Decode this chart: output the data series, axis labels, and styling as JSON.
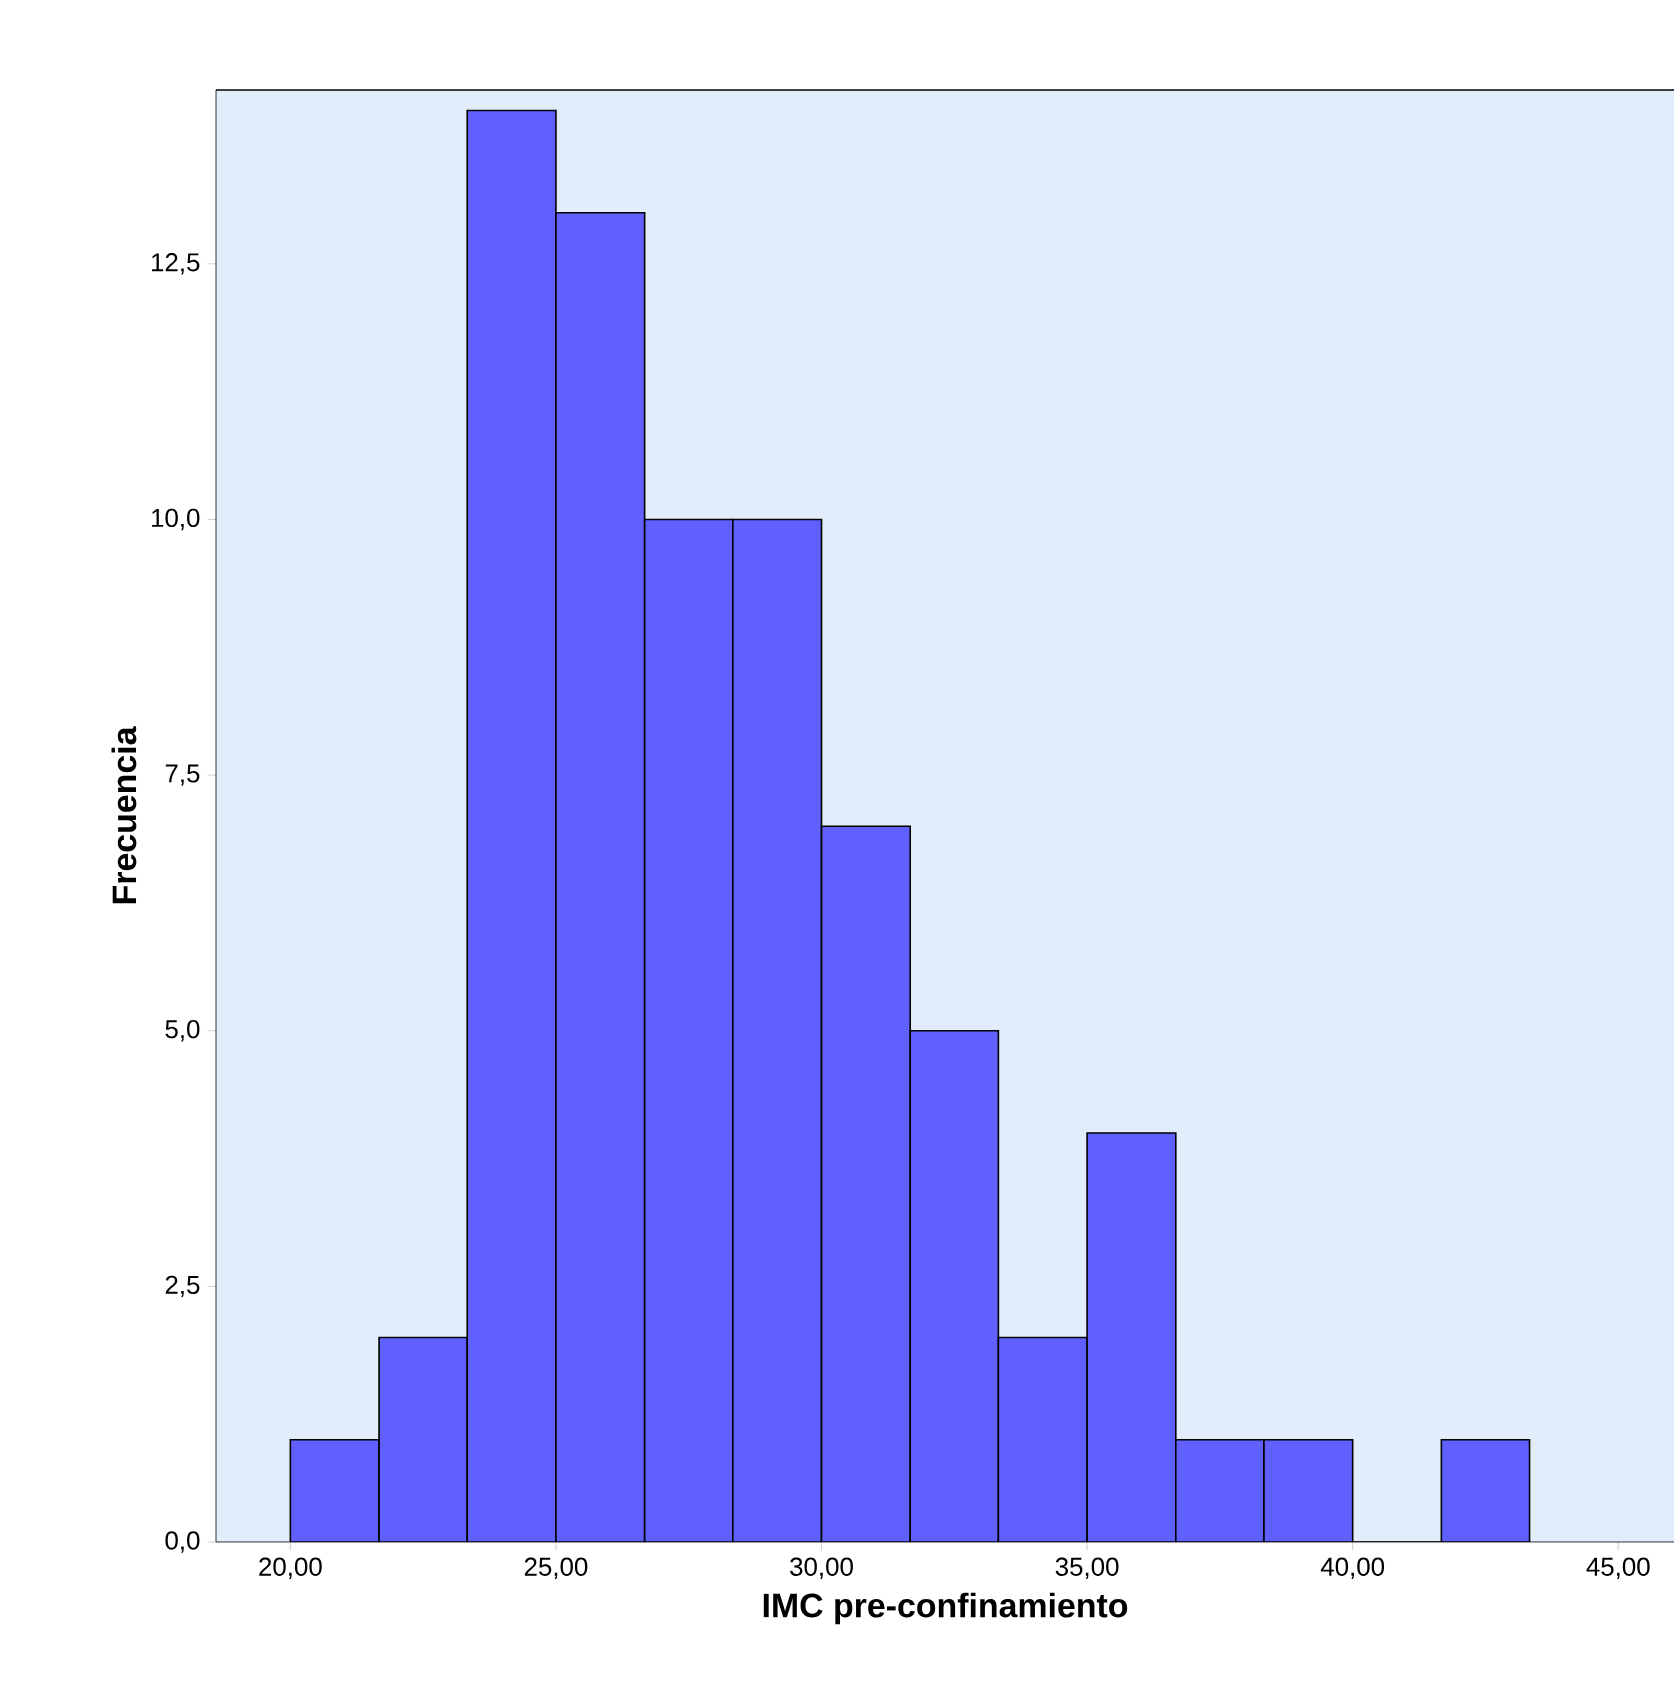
{
  "chart_data": {
    "type": "histogram",
    "xlabel": "IMC pre-confinamiento",
    "ylabel": "Frecuencia",
    "bins": [
      20,
      21.67,
      23.33,
      25,
      26.67,
      28.33,
      30,
      31.67,
      33.33,
      35,
      36.67,
      38.33,
      40,
      41.67,
      43.33
    ],
    "values": [
      1,
      2,
      14,
      13,
      10,
      10,
      7,
      5,
      2,
      4,
      1,
      1,
      0,
      1
    ],
    "color": "#6060ff",
    "xlim": [
      18.6,
      46.05
    ],
    "ylim": [
      0,
      14.2
    ],
    "xticks": [
      {
        "value": 20,
        "label": "20,00"
      },
      {
        "value": 25,
        "label": "25,00"
      },
      {
        "value": 30,
        "label": "30,00"
      },
      {
        "value": 35,
        "label": "35,00"
      },
      {
        "value": 40,
        "label": "40,00"
      },
      {
        "value": 45,
        "label": "45,00"
      }
    ],
    "yticks": [
      {
        "value": 0,
        "label": "0,0"
      },
      {
        "value": 2.5,
        "label": "2,5"
      },
      {
        "value": 5,
        "label": "5,0"
      },
      {
        "value": 7.5,
        "label": "7,5"
      },
      {
        "value": 10,
        "label": "10,0"
      },
      {
        "value": 12.5,
        "label": "12,5"
      }
    ],
    "grid": false
  }
}
